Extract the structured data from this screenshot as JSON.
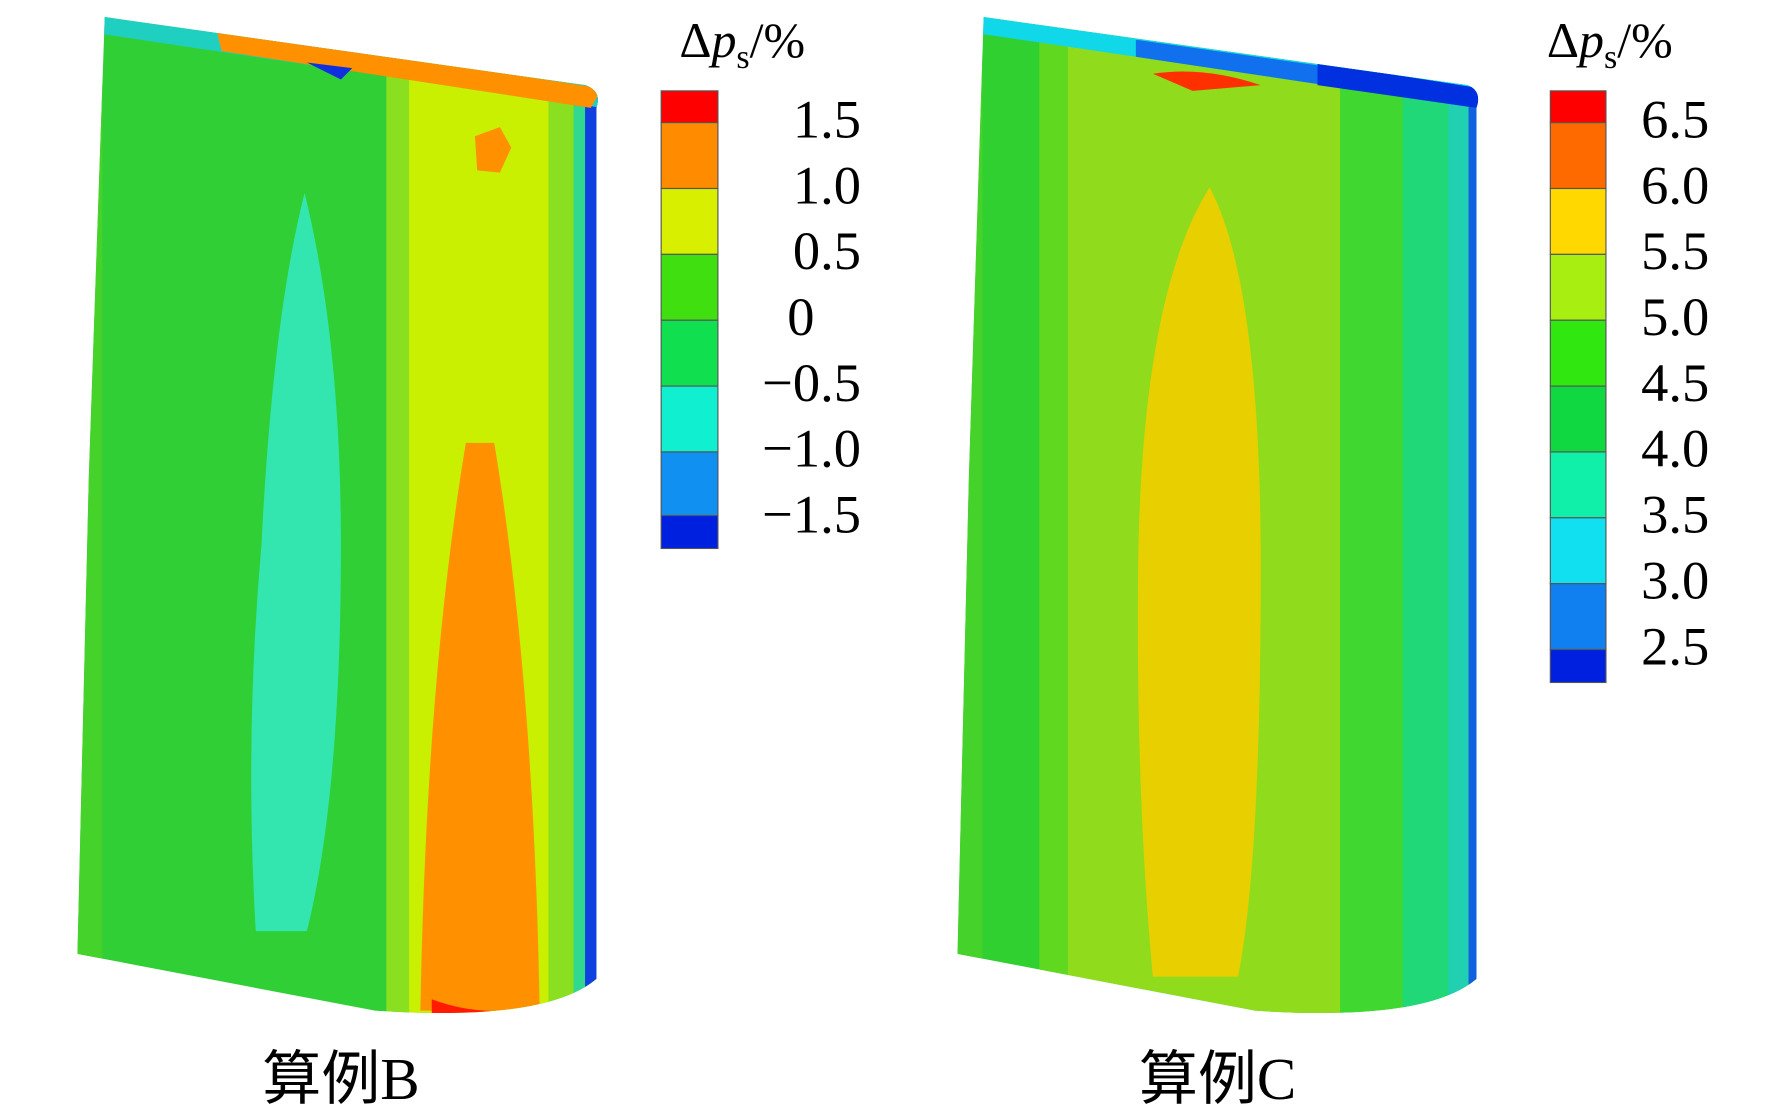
{
  "panels": [
    {
      "caption": "算例B",
      "legend": {
        "title": {
          "delta": "Δ",
          "symbol": "p",
          "subscript": "s",
          "unit": "/%"
        },
        "labels": [
          "1.5",
          "1.0",
          "0.5",
          "0",
          "−0.5",
          "−1.0",
          "−1.5"
        ]
      }
    },
    {
      "caption": "算例C",
      "legend": {
        "title": {
          "delta": "Δ",
          "symbol": "p",
          "subscript": "s",
          "unit": "/%"
        },
        "labels": [
          "6.5",
          "6.0",
          "5.5",
          "5.0",
          "4.5",
          "4.0",
          "3.5",
          "3.0",
          "2.5"
        ]
      }
    }
  ]
}
